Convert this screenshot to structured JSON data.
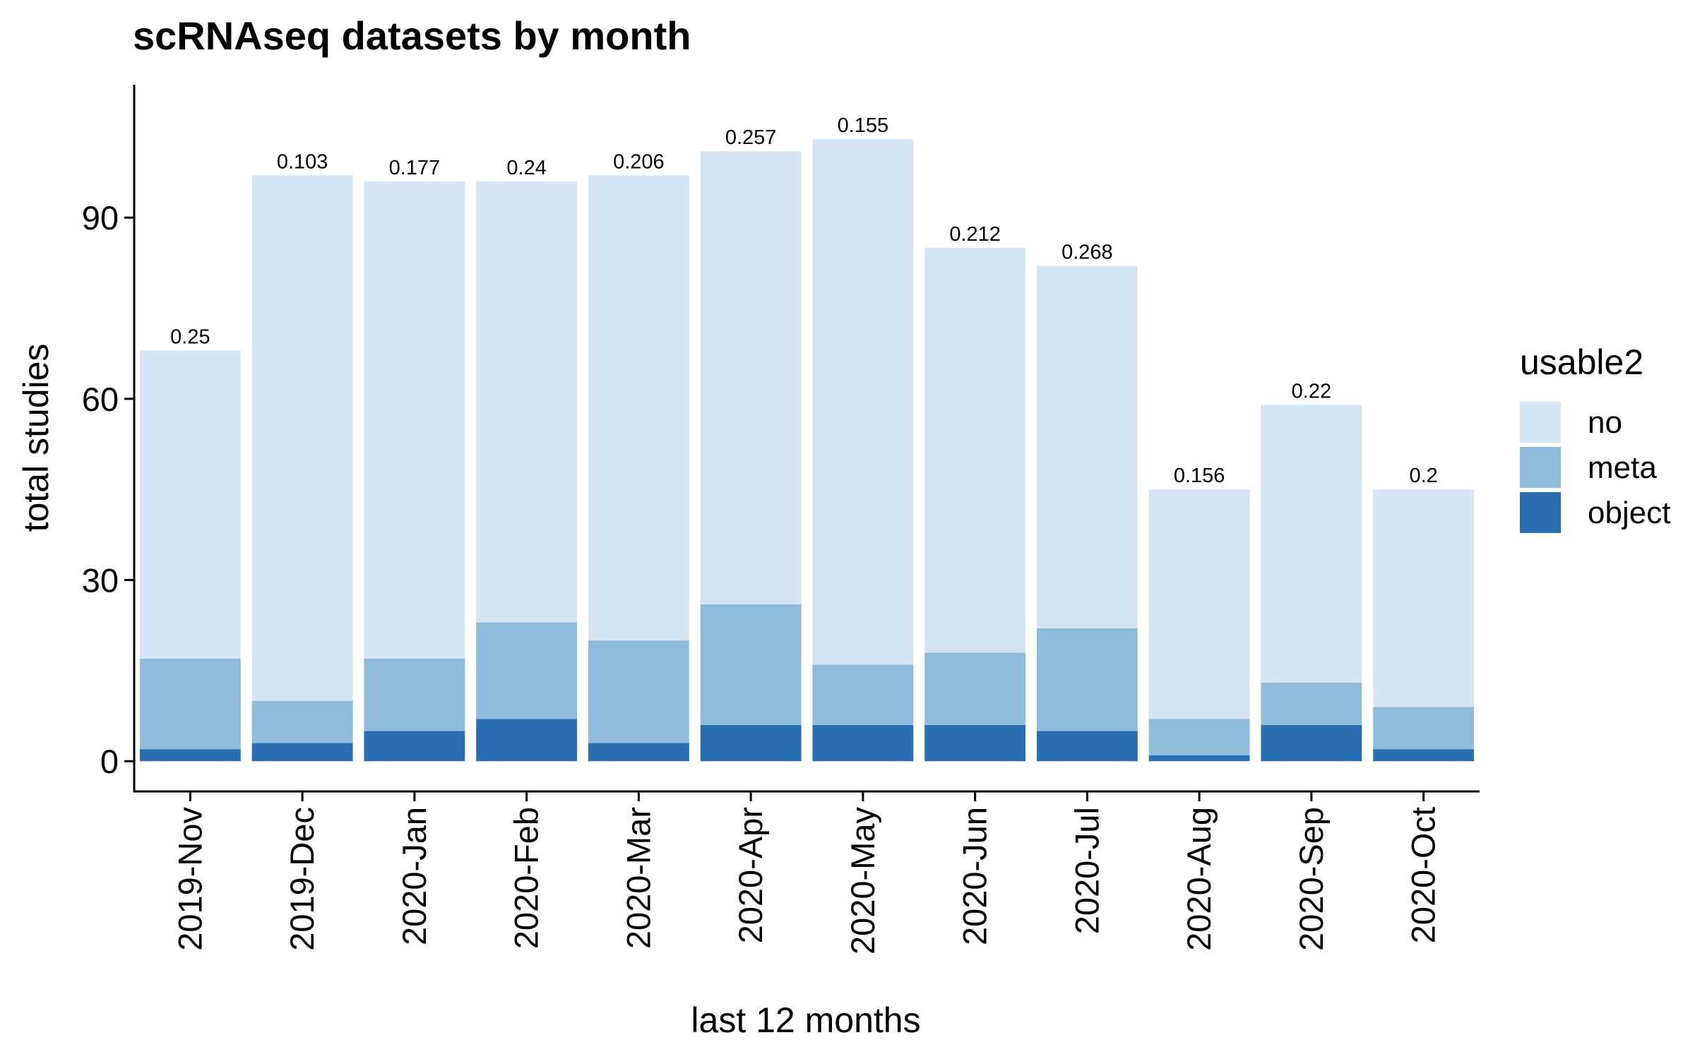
{
  "chart_data": {
    "type": "bar",
    "stacked": true,
    "title": "scRNAseq datasets by month",
    "xlabel": "last 12 months",
    "ylabel": "total studies",
    "ylim": [
      -5,
      112
    ],
    "yticks": [
      0,
      30,
      60,
      90
    ],
    "grid": false,
    "legend_title": "usable2",
    "legend_position": "right",
    "categories": [
      "2019-Nov",
      "2019-Dec",
      "2020-Jan",
      "2020-Feb",
      "2020-Mar",
      "2020-Apr",
      "2020-May",
      "2020-Jun",
      "2020-Jul",
      "2020-Aug",
      "2020-Sep",
      "2020-Oct"
    ],
    "series": [
      {
        "name": "object",
        "color": "#2b6fb3",
        "values": [
          2,
          3,
          5,
          7,
          3,
          6,
          6,
          6,
          5,
          1,
          6,
          2
        ]
      },
      {
        "name": "meta",
        "color": "#90bcdb",
        "values": [
          15,
          7,
          12,
          16,
          17,
          20,
          10,
          12,
          17,
          6,
          7,
          7
        ]
      },
      {
        "name": "no",
        "color": "#d6e5f4",
        "values": [
          51,
          87,
          79,
          73,
          77,
          75,
          87,
          67,
          60,
          38,
          46,
          36
        ]
      }
    ],
    "totals": [
      68,
      97,
      96,
      96,
      97,
      101,
      103,
      85,
      82,
      45,
      59,
      45
    ],
    "bar_labels": [
      "0.25",
      "0.103",
      "0.177",
      "0.24",
      "0.206",
      "0.257",
      "0.155",
      "0.212",
      "0.268",
      "0.156",
      "0.22",
      "0.2"
    ],
    "legend_order": [
      "no",
      "meta",
      "object"
    ]
  }
}
